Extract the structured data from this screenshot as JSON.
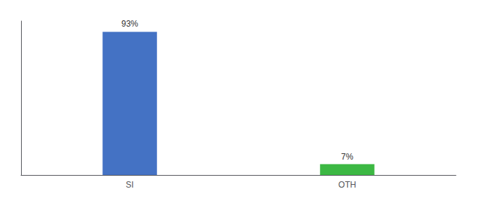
{
  "chart_data": {
    "type": "bar",
    "categories": [
      "SI",
      "OTH"
    ],
    "values": [
      93,
      7
    ],
    "value_labels": [
      "93%",
      "7%"
    ],
    "colors": [
      "#4472c4",
      "#3cb843"
    ],
    "ylim": [
      0,
      100
    ],
    "data_labels": true,
    "tick_labels": "x",
    "grid": false
  }
}
